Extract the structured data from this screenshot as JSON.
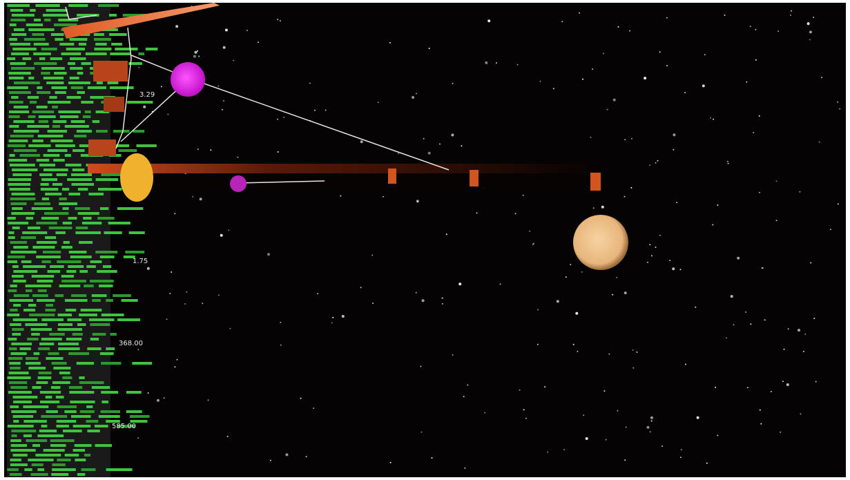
{
  "labels": [
    "3.29",
    "1.75",
    "368.00",
    "585.00"
  ]
}
